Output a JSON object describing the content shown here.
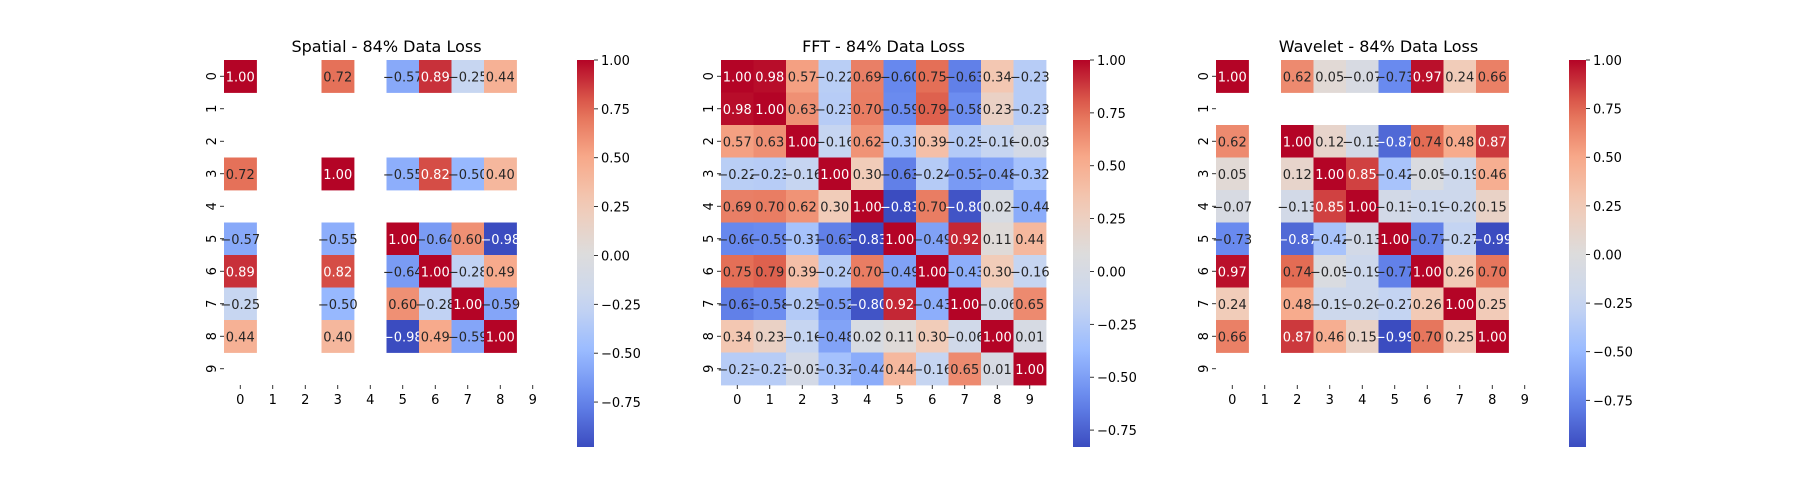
{
  "figure": {
    "background": "#ffffff"
  },
  "colormap": {
    "name": "coolwarm",
    "stops": [
      "#3b4cc0",
      "#6788ee",
      "#9abbff",
      "#c9d7f0",
      "#dddcdc",
      "#f2cbb7",
      "#f7a889",
      "#e26952",
      "#b40426"
    ],
    "vmin": -1.0,
    "vmax": 1.0
  },
  "chart_data": [
    {
      "type": "heatmap",
      "title": "Spatial - 84% Data Loss",
      "xlabel": "",
      "ylabel": "",
      "x_ticks": [
        "0",
        "1",
        "2",
        "3",
        "4",
        "5",
        "6",
        "7",
        "8",
        "9"
      ],
      "y_ticks": [
        "0",
        "1",
        "2",
        "3",
        "4",
        "5",
        "6",
        "7",
        "8",
        "9"
      ],
      "color_range": [
        -0.98,
        1.0
      ],
      "colorbar_ticks": [
        "1.00",
        "0.75",
        "0.50",
        "0.25",
        "0.00",
        "−0.25",
        "−0.50",
        "−0.75"
      ],
      "matrix": [
        [
          1.0,
          null,
          null,
          0.72,
          null,
          -0.57,
          0.89,
          -0.25,
          0.44,
          null
        ],
        [
          null,
          null,
          null,
          null,
          null,
          null,
          null,
          null,
          null,
          null
        ],
        [
          null,
          null,
          null,
          null,
          null,
          null,
          null,
          null,
          null,
          null
        ],
        [
          0.72,
          null,
          null,
          1.0,
          null,
          -0.55,
          0.82,
          -0.5,
          0.4,
          null
        ],
        [
          null,
          null,
          null,
          null,
          null,
          null,
          null,
          null,
          null,
          null
        ],
        [
          -0.57,
          null,
          null,
          -0.55,
          null,
          1.0,
          -0.64,
          0.6,
          -0.98,
          null
        ],
        [
          0.89,
          null,
          null,
          0.82,
          null,
          -0.64,
          1.0,
          -0.28,
          0.49,
          null
        ],
        [
          -0.25,
          null,
          null,
          -0.5,
          null,
          0.6,
          -0.28,
          1.0,
          -0.59,
          null
        ],
        [
          0.44,
          null,
          null,
          0.4,
          null,
          -0.98,
          0.49,
          -0.59,
          1.0,
          null
        ],
        [
          null,
          null,
          null,
          null,
          null,
          null,
          null,
          null,
          null,
          null
        ]
      ]
    },
    {
      "type": "heatmap",
      "title": "FFT - 84% Data Loss",
      "xlabel": "",
      "ylabel": "",
      "x_ticks": [
        "0",
        "1",
        "2",
        "3",
        "4",
        "5",
        "6",
        "7",
        "8",
        "9"
      ],
      "y_ticks": [
        "0",
        "1",
        "2",
        "3",
        "4",
        "5",
        "6",
        "7",
        "8",
        "9"
      ],
      "color_range": [
        -0.83,
        1.0
      ],
      "colorbar_ticks": [
        "1.00",
        "0.75",
        "0.50",
        "0.25",
        "0.00",
        "−0.25",
        "−0.50",
        "−0.75"
      ],
      "matrix": [
        [
          1.0,
          0.98,
          0.57,
          -0.22,
          0.69,
          -0.6,
          0.75,
          -0.63,
          0.34,
          -0.23
        ],
        [
          0.98,
          1.0,
          0.63,
          -0.23,
          0.7,
          -0.59,
          0.79,
          -0.58,
          0.23,
          -0.23
        ],
        [
          0.57,
          0.63,
          1.0,
          -0.16,
          0.62,
          -0.31,
          0.39,
          -0.25,
          -0.16,
          -0.03
        ],
        [
          -0.22,
          -0.23,
          -0.16,
          1.0,
          0.3,
          -0.63,
          -0.24,
          -0.52,
          -0.48,
          -0.32
        ],
        [
          0.69,
          0.7,
          0.62,
          0.3,
          1.0,
          -0.83,
          0.7,
          -0.8,
          0.02,
          -0.44
        ],
        [
          -0.6,
          -0.59,
          -0.31,
          -0.63,
          -0.83,
          1.0,
          -0.49,
          0.92,
          0.11,
          0.44
        ],
        [
          0.75,
          0.79,
          0.39,
          -0.24,
          0.7,
          -0.49,
          1.0,
          -0.43,
          0.3,
          -0.16
        ],
        [
          -0.63,
          -0.58,
          -0.25,
          -0.52,
          -0.8,
          0.92,
          -0.43,
          1.0,
          -0.06,
          0.65
        ],
        [
          0.34,
          0.23,
          -0.16,
          -0.48,
          0.02,
          0.11,
          0.3,
          -0.06,
          1.0,
          0.01
        ],
        [
          -0.23,
          -0.23,
          -0.03,
          -0.32,
          -0.44,
          0.44,
          -0.16,
          0.65,
          0.01,
          1.0
        ]
      ]
    },
    {
      "type": "heatmap",
      "title": "Wavelet - 84% Data Loss",
      "xlabel": "",
      "ylabel": "",
      "x_ticks": [
        "0",
        "1",
        "2",
        "3",
        "4",
        "5",
        "6",
        "7",
        "8",
        "9"
      ],
      "y_ticks": [
        "0",
        "1",
        "2",
        "3",
        "4",
        "5",
        "6",
        "7",
        "8",
        "9"
      ],
      "color_range": [
        -0.99,
        1.0
      ],
      "colorbar_ticks": [
        "1.00",
        "0.75",
        "0.50",
        "0.25",
        "0.00",
        "−0.25",
        "−0.50",
        "−0.75"
      ],
      "matrix": [
        [
          1.0,
          null,
          0.62,
          0.05,
          -0.07,
          -0.73,
          0.97,
          0.24,
          0.66,
          null
        ],
        [
          null,
          null,
          null,
          null,
          null,
          null,
          null,
          null,
          null,
          null
        ],
        [
          0.62,
          null,
          1.0,
          0.12,
          -0.13,
          -0.87,
          0.74,
          0.48,
          0.87,
          null
        ],
        [
          0.05,
          null,
          0.12,
          1.0,
          0.85,
          -0.42,
          -0.05,
          -0.19,
          0.46,
          null
        ],
        [
          -0.07,
          null,
          -0.13,
          0.85,
          1.0,
          -0.13,
          -0.19,
          -0.2,
          0.15,
          null
        ],
        [
          -0.73,
          null,
          -0.87,
          -0.42,
          -0.13,
          1.0,
          -0.77,
          -0.27,
          -0.99,
          null
        ],
        [
          0.97,
          null,
          0.74,
          -0.05,
          -0.19,
          -0.77,
          1.0,
          0.26,
          0.7,
          null
        ],
        [
          0.24,
          null,
          0.48,
          -0.19,
          -0.2,
          -0.27,
          0.26,
          1.0,
          0.25,
          null
        ],
        [
          0.66,
          null,
          0.87,
          0.46,
          0.15,
          -0.99,
          0.7,
          0.25,
          1.0,
          null
        ],
        [
          null,
          null,
          null,
          null,
          null,
          null,
          null,
          null,
          null,
          null
        ]
      ]
    }
  ]
}
